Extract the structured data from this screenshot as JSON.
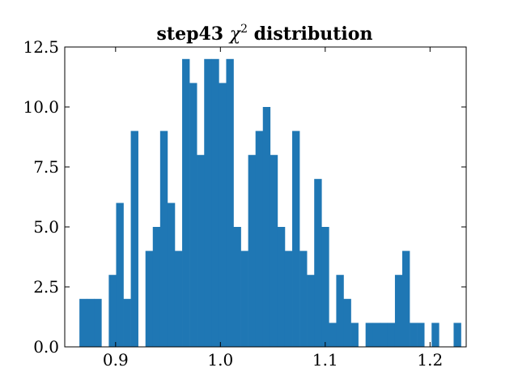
{
  "chart_data": {
    "type": "bar",
    "title": "step43 χ² distribution",
    "title_parts": {
      "prefix": "step43 ",
      "chi": "χ",
      "sup": "2",
      "suffix": " distribution"
    },
    "xlabel": "",
    "ylabel": "",
    "xlim": [
      0.8515,
      1.2345
    ],
    "ylim": [
      0,
      12.5
    ],
    "x_ticks": [
      0.9,
      1.0,
      1.1,
      1.2
    ],
    "x_tick_labels": [
      "0.9",
      "1.0",
      "1.1",
      "1.2"
    ],
    "y_ticks": [
      0,
      2.5,
      5,
      7.5,
      10,
      12.5
    ],
    "y_tick_labels": [
      "0.0",
      "2.5",
      "5.0",
      "7.5",
      "10.0",
      "12.5"
    ],
    "bin_start": 0.8655,
    "bin_width": 0.007,
    "counts": [
      2,
      2,
      2,
      0,
      3,
      6,
      2,
      9,
      0,
      4,
      5,
      9,
      6,
      4,
      12,
      11,
      8,
      12,
      12,
      11,
      12,
      5,
      4,
      8,
      9,
      10,
      8,
      5,
      4,
      9,
      4,
      3,
      7,
      5,
      1,
      3,
      2,
      1,
      0,
      1,
      1,
      1,
      1,
      3,
      4,
      1,
      1,
      0,
      1,
      0,
      0,
      1
    ],
    "bar_color": "#1f77b4",
    "grid": false,
    "ticks_direction": "in"
  }
}
